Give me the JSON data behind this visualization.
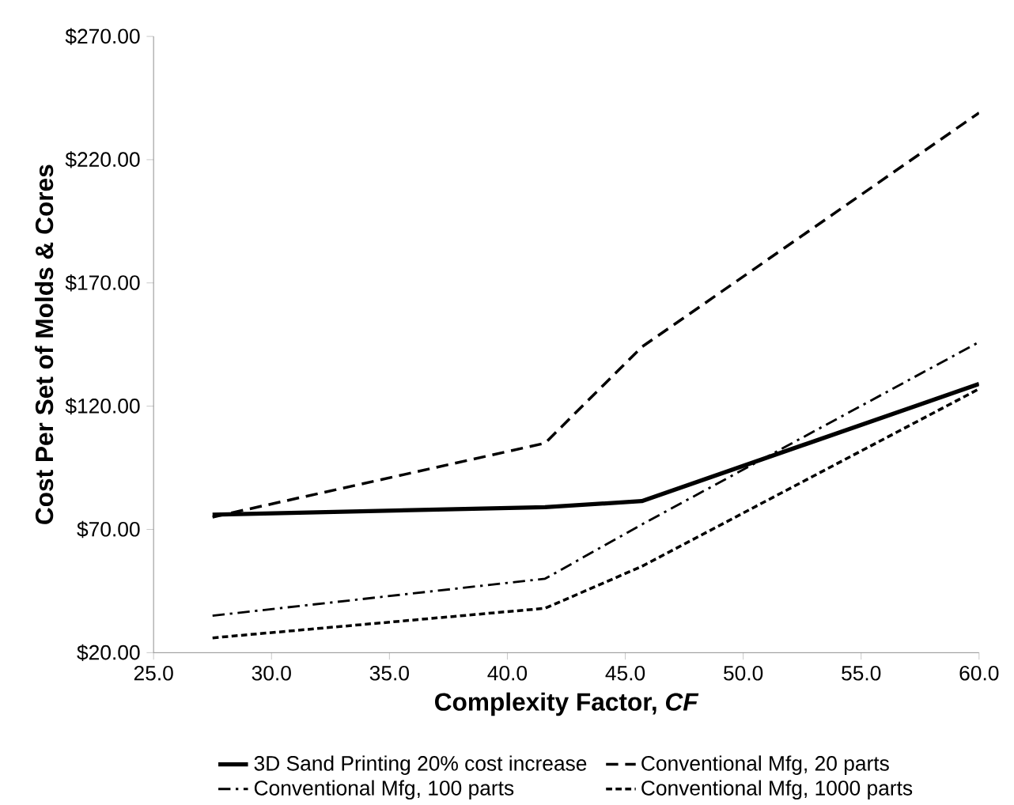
{
  "chart_data": {
    "type": "line",
    "xlabel": "Complexity Factor, *CF*",
    "ylabel": "Cost Per Set of Molds & Cores",
    "x": [
      27.5,
      41.6,
      45.7,
      60
    ],
    "series": [
      {
        "name": "3D Sand Printing 20% cost increase",
        "color": "#000000",
        "values": [
          76,
          79,
          81.5,
          129
        ],
        "line_style": "solid"
      },
      {
        "name": "Conventional Mfg, 20 parts",
        "color": "#000000",
        "values": [
          75,
          105,
          144,
          239
        ],
        "line_style": "dashed"
      },
      {
        "name": "Conventional Mfg, 100 parts",
        "color": "#000000",
        "values": [
          35,
          50,
          72,
          146
        ],
        "line_style": "dashdot"
      },
      {
        "name": "Conventional Mfg, 1000 parts",
        "color": "#000000",
        "values": [
          26,
          38,
          55,
          127
        ],
        "line_style": "dotted"
      }
    ],
    "xlim": [
      25,
      60
    ],
    "xticks": [
      {
        "value": 25,
        "label": "25.0"
      },
      {
        "value": 30,
        "label": "30.0"
      },
      {
        "value": 35,
        "label": "35.0"
      },
      {
        "value": 40,
        "label": "40.0"
      },
      {
        "value": 45,
        "label": "45.0"
      },
      {
        "value": 50,
        "label": "50.0"
      },
      {
        "value": 55,
        "label": "55.0"
      },
      {
        "value": 60,
        "label": "60.0"
      }
    ],
    "ylim": [
      20,
      270
    ],
    "yticks": [
      {
        "value": 20,
        "label": "$20.00"
      },
      {
        "value": 70,
        "label": "$70.00"
      },
      {
        "value": 120,
        "label": "$120.00"
      },
      {
        "value": 170,
        "label": "$170.00"
      },
      {
        "value": 220,
        "label": "$220.00"
      },
      {
        "value": 270,
        "label": "$270.00"
      }
    ],
    "grid": false,
    "legend": "bottom",
    "marker": "none"
  }
}
